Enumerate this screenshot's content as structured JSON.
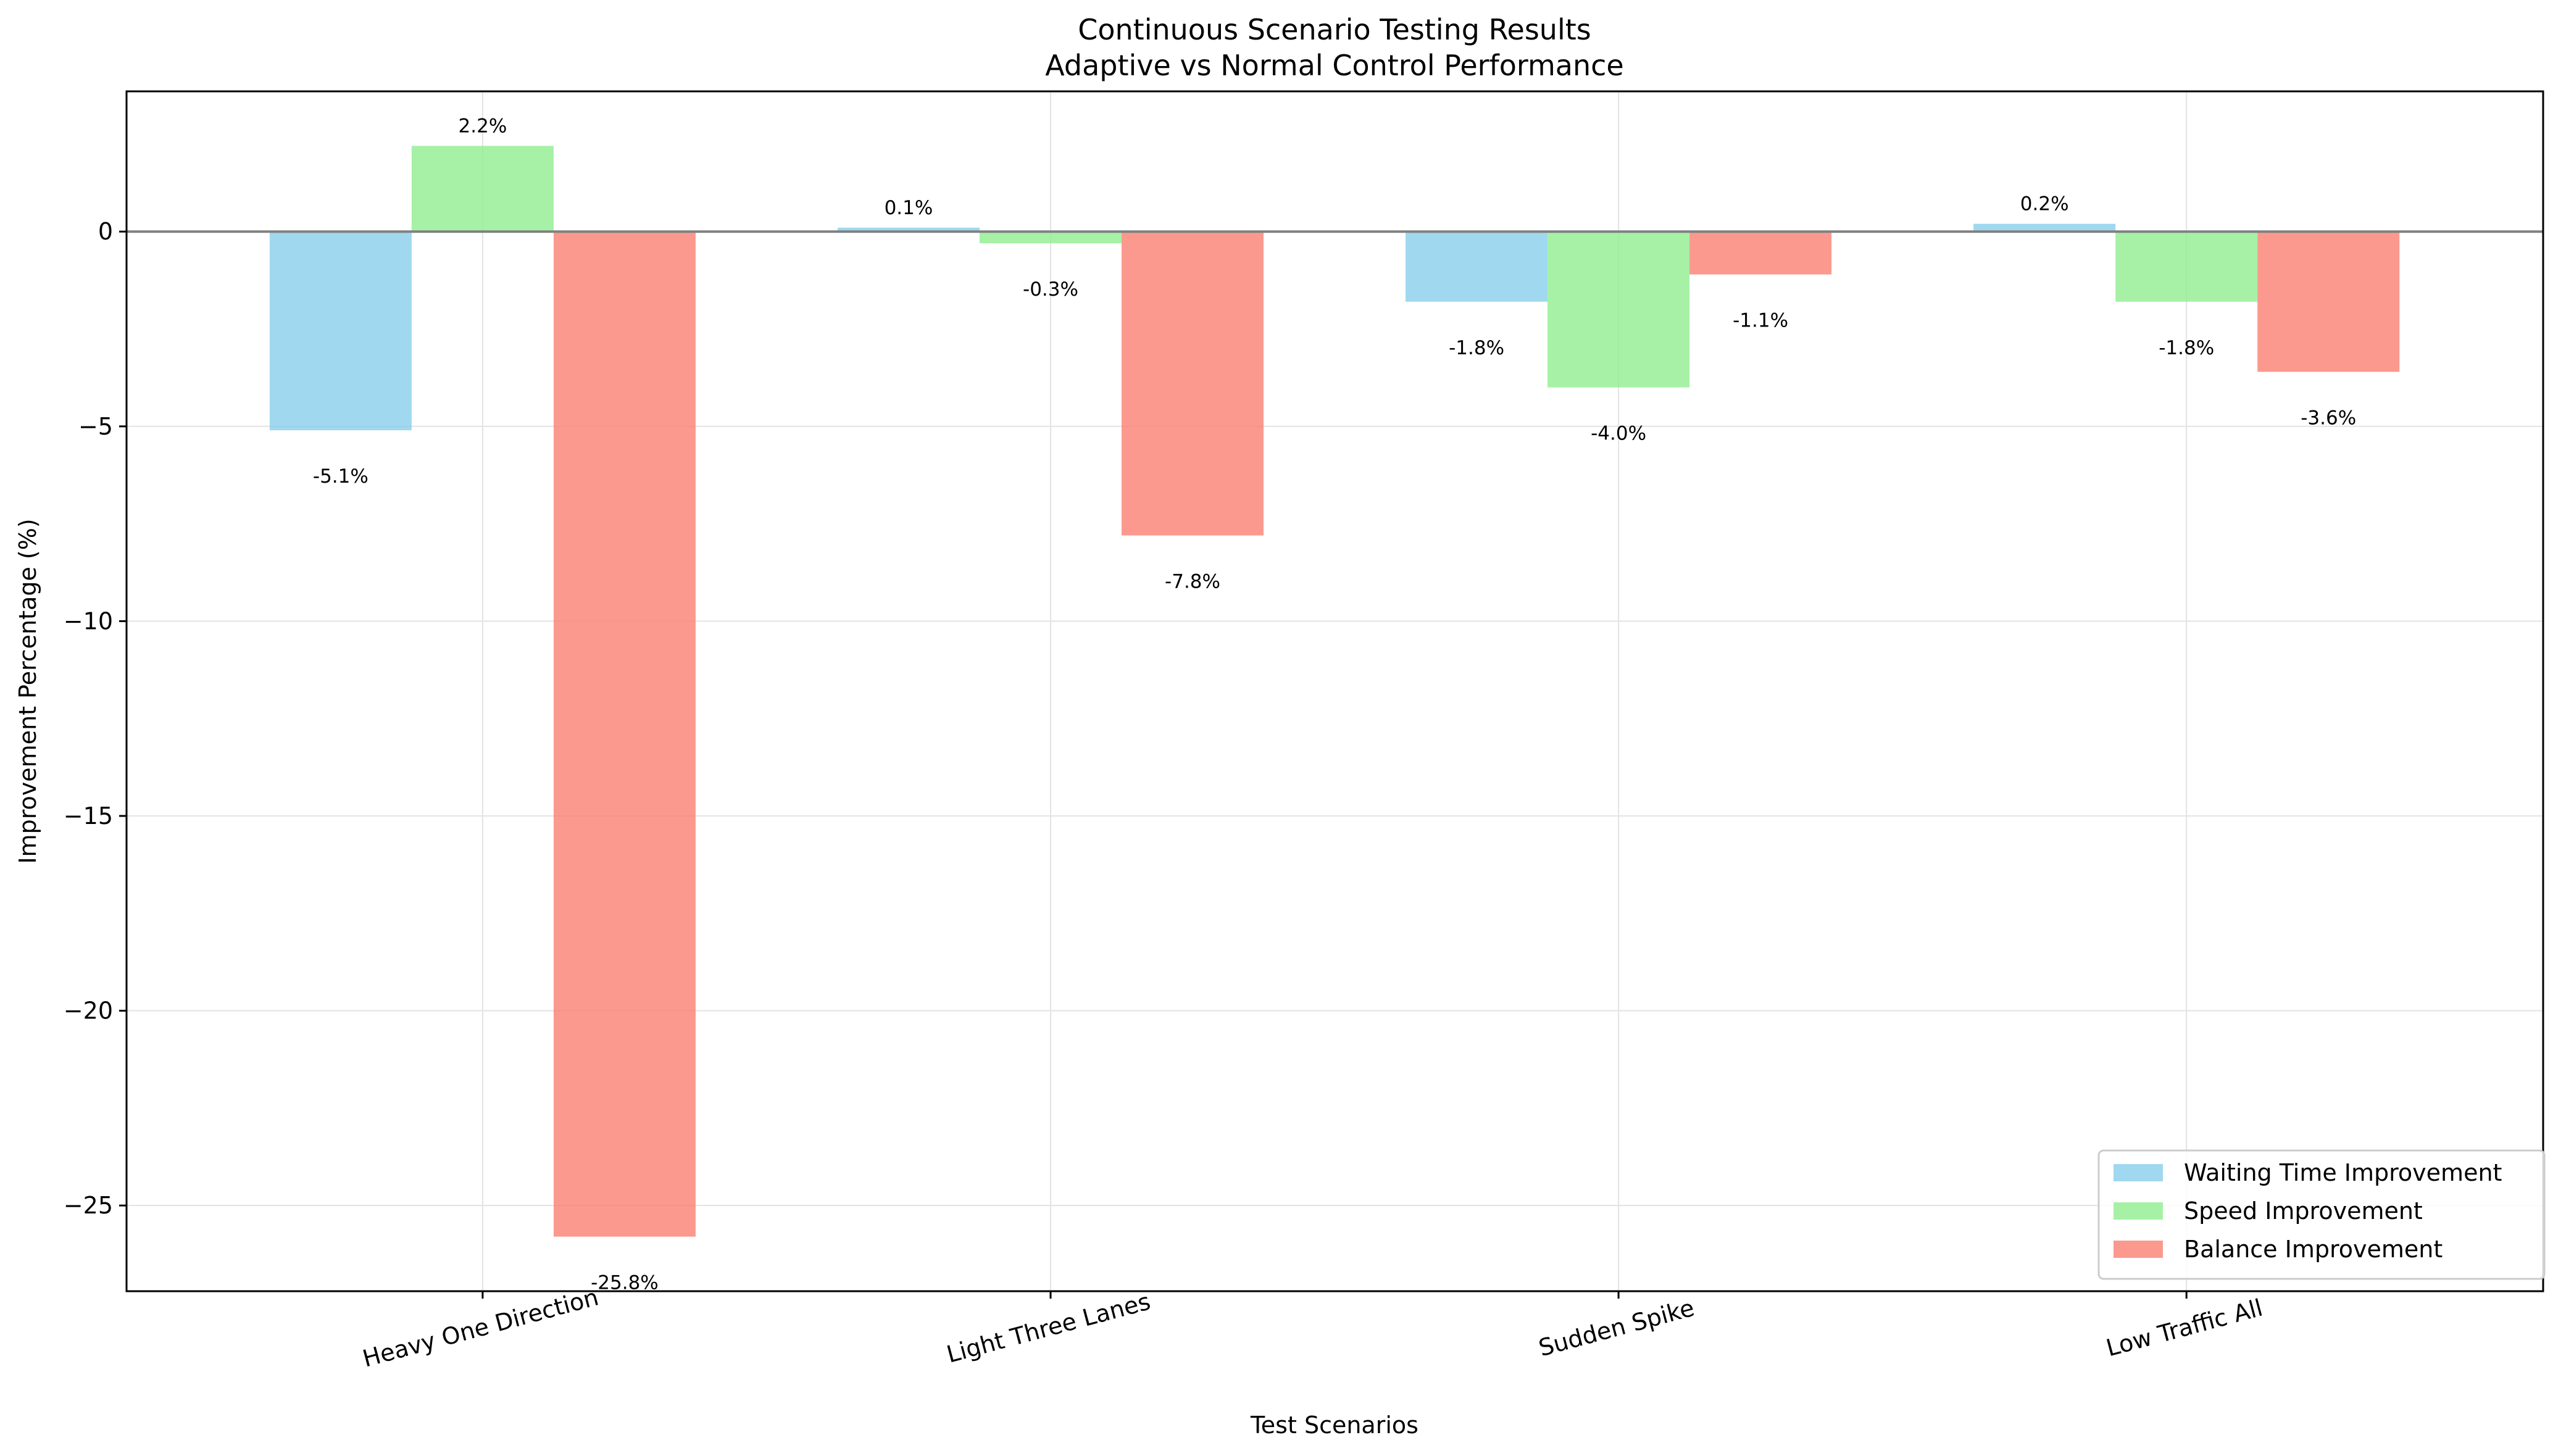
{
  "chart_data": {
    "type": "bar",
    "title": "Continuous Scenario Testing Results",
    "subtitle": "Adaptive vs Normal Control Performance",
    "xlabel": "Test Scenarios",
    "ylabel": "Improvement Percentage (%)",
    "categories": [
      "Heavy One Direction",
      "Light Three Lanes",
      "Sudden Spike",
      "Low Traffic All"
    ],
    "series": [
      {
        "name": "Waiting Time Improvement",
        "color": "#87ceeb",
        "values": [
          -5.1,
          0.1,
          -1.8,
          0.2
        ],
        "labels": [
          "-5.1%",
          "0.1%",
          "-1.8%",
          "0.2%"
        ]
      },
      {
        "name": "Speed Improvement",
        "color": "#90ee90",
        "values": [
          2.2,
          -0.3,
          -4.0,
          -1.8
        ],
        "labels": [
          "2.2%",
          "-0.3%",
          "-4.0%",
          "-1.8%"
        ]
      },
      {
        "name": "Balance Improvement",
        "color": "#fa8072",
        "values": [
          -25.8,
          -7.8,
          -1.1,
          -3.6
        ],
        "labels": [
          "-25.8%",
          "-7.8%",
          "-1.1%",
          "-3.6%"
        ]
      }
    ],
    "ylim": [
      -27.2,
      3.6
    ],
    "yticks": [
      0,
      -5,
      -10,
      -15,
      -20,
      -25
    ],
    "ytick_labels": [
      "0",
      "−5",
      "−10",
      "−15",
      "−20",
      "−25"
    ],
    "grid": true,
    "legend_position": "bottom-right"
  }
}
